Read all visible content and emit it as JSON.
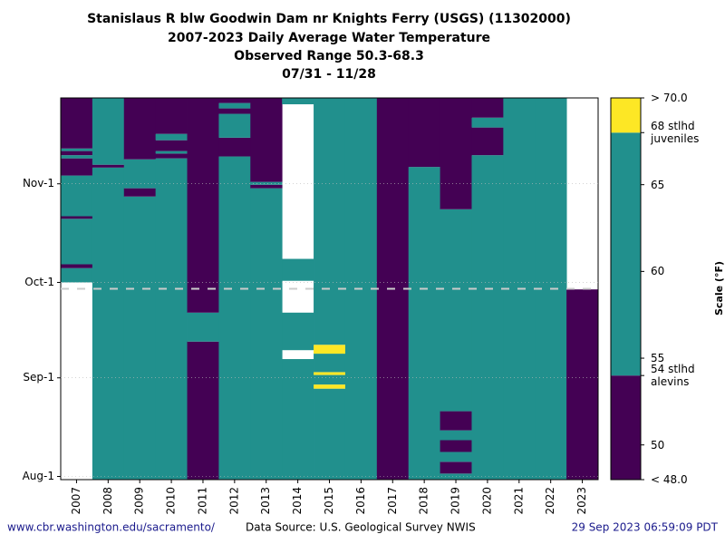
{
  "chart_data": {
    "type": "heatmap",
    "title": [
      "Stanislaus R blw Goodwin Dam nr Knights Ferry (USGS) (11302000)",
      "2007-2023 Daily Average Water Temperature",
      "Observed Range 50.3-68.3",
      "07/31 - 11/28"
    ],
    "categories": [
      "2007",
      "2008",
      "2009",
      "2010",
      "2011",
      "2012",
      "2013",
      "2014",
      "2015",
      "2016",
      "2017",
      "2018",
      "2019",
      "2020",
      "2021",
      "2022",
      "2023"
    ],
    "ylim": [
      0,
      120
    ],
    "yticks": [
      {
        "value": 1,
        "label": "Aug-1"
      },
      {
        "value": 32,
        "label": "Sep-1"
      },
      {
        "value": 62,
        "label": "Oct-1"
      },
      {
        "value": 93,
        "label": "Nov-1"
      }
    ],
    "grid": true,
    "today": 60,
    "bins": [
      {
        "from": 48,
        "to": 54,
        "color": "#440154"
      },
      {
        "from": 54,
        "to": 68,
        "color": "#21908d"
      },
      {
        "from": 68,
        "to": 70,
        "color": "#fde725"
      }
    ],
    "clim": [
      48,
      70
    ],
    "cticks": [
      {
        "value": 70,
        "label": "> 70.0"
      },
      {
        "value": 68,
        "label": "68 stlhd juveniles"
      },
      65,
      60,
      55,
      {
        "value": 54,
        "label": "54 stlhd alevins"
      },
      50,
      {
        "value": 48,
        "label": "< 48.0"
      }
    ],
    "clabel": "Scale (°F)",
    "series": [
      {
        "segments": [
          [
            62,
            66.5,
            54
          ],
          [
            66.5,
            67.7,
            48
          ],
          [
            67.7,
            82,
            54
          ],
          [
            82,
            82.8,
            48
          ],
          [
            82.8,
            95.6,
            54
          ],
          [
            95.6,
            101,
            48
          ],
          [
            101,
            102,
            54
          ],
          [
            102,
            103.3,
            48
          ],
          [
            103.3,
            104.1,
            54
          ],
          [
            104.1,
            120,
            48
          ]
        ]
      },
      {
        "segments": [
          [
            0,
            98.1,
            54
          ],
          [
            98.1,
            99,
            48
          ],
          [
            99,
            120,
            54
          ]
        ]
      },
      {
        "segments": [
          [
            0,
            89,
            54
          ],
          [
            89,
            91.6,
            48
          ],
          [
            91.6,
            100.7,
            54
          ],
          [
            100.7,
            120,
            48
          ]
        ]
      },
      {
        "segments": [
          [
            0,
            101,
            54
          ],
          [
            101,
            102.5,
            48
          ],
          [
            102.5,
            103.3,
            54
          ],
          [
            103.3,
            106.7,
            48
          ],
          [
            106.7,
            108.7,
            54
          ],
          [
            108.7,
            120,
            48
          ]
        ]
      },
      {
        "segments": [
          [
            0,
            43.4,
            48
          ],
          [
            43.4,
            52.5,
            54
          ],
          [
            52.5,
            120,
            48
          ]
        ]
      },
      {
        "segments": [
          [
            0,
            101.6,
            54
          ],
          [
            101.6,
            107.5,
            48
          ],
          [
            107.5,
            115,
            54
          ],
          [
            115,
            116.7,
            48
          ],
          [
            116.7,
            118.4,
            54
          ],
          [
            118.4,
            120,
            48
          ]
        ]
      },
      {
        "segments": [
          [
            0,
            91.6,
            54
          ],
          [
            91.6,
            92.7,
            48
          ],
          [
            92.7,
            93.6,
            54
          ],
          [
            93.6,
            120,
            48
          ]
        ]
      },
      {
        "segments": [
          [
            0,
            37.9,
            54
          ],
          [
            40.7,
            52.5,
            54
          ],
          [
            62.5,
            69.4,
            54
          ],
          [
            118,
            120,
            54
          ]
        ]
      },
      {
        "segments": [
          [
            0,
            28.6,
            54
          ],
          [
            28.6,
            29.9,
            68
          ],
          [
            29.9,
            32.9,
            54
          ],
          [
            32.9,
            33.8,
            68
          ],
          [
            33.8,
            39.6,
            54
          ],
          [
            39.6,
            42.4,
            68
          ],
          [
            42.4,
            120,
            54
          ]
        ]
      },
      {
        "segments": [
          [
            0,
            120,
            54
          ]
        ]
      },
      {
        "segments": [
          [
            0,
            120,
            48
          ]
        ]
      },
      {
        "segments": [
          [
            0,
            98.3,
            54
          ],
          [
            98.3,
            120,
            48
          ]
        ]
      },
      {
        "segments": [
          [
            0,
            1.9,
            54
          ],
          [
            1.9,
            5.6,
            48
          ],
          [
            5.6,
            8.7,
            54
          ],
          [
            8.7,
            12.4,
            48
          ],
          [
            12.4,
            15.5,
            54
          ],
          [
            15.5,
            21.5,
            48
          ],
          [
            21.5,
            85,
            54
          ],
          [
            85,
            120,
            48
          ]
        ]
      },
      {
        "segments": [
          [
            0,
            102,
            54
          ],
          [
            102,
            110.7,
            48
          ],
          [
            110.7,
            113.8,
            54
          ],
          [
            113.8,
            120,
            48
          ]
        ]
      },
      {
        "segments": [
          [
            0,
            120,
            54
          ]
        ]
      },
      {
        "segments": [
          [
            0,
            120,
            54
          ]
        ]
      },
      {
        "segments": [
          [
            0,
            59.8,
            48
          ]
        ]
      }
    ],
    "footer": [
      "www.cbr.washington.edu/sacramento/",
      "Data Source: U.S. Geological Survey NWIS",
      "29 Sep 2023 06:59:09 PDT"
    ]
  }
}
